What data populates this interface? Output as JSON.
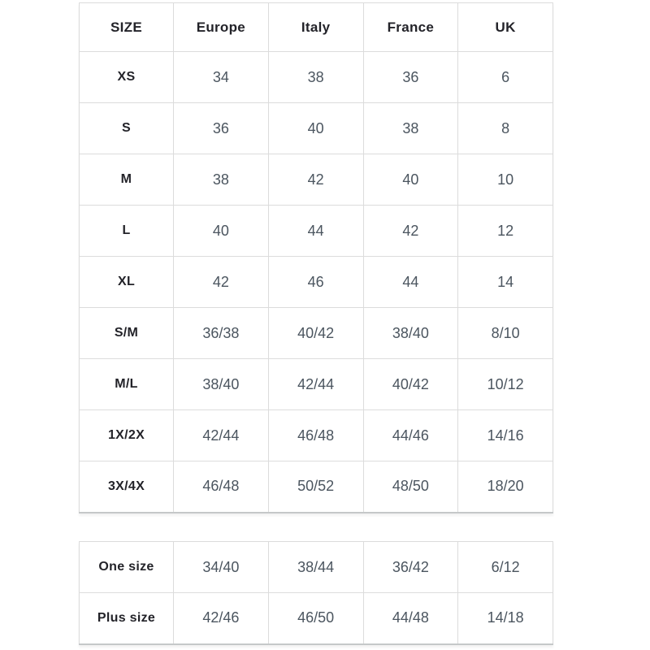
{
  "colors": {
    "background": "#ffffff",
    "border": "#dcdcdc",
    "table_bottom_border": "#c5c8c9",
    "header_text": "#232329",
    "value_text": "#4b555f"
  },
  "chart_data": {
    "type": "table",
    "main_table": {
      "columns": [
        "SIZE",
        "Europe",
        "Italy",
        "France",
        "UK"
      ],
      "rows": [
        {
          "label": "XS",
          "values": [
            "34",
            "38",
            "36",
            "6"
          ]
        },
        {
          "label": "S",
          "values": [
            "36",
            "40",
            "38",
            "8"
          ]
        },
        {
          "label": "M",
          "values": [
            "38",
            "42",
            "40",
            "10"
          ]
        },
        {
          "label": "L",
          "values": [
            "40",
            "44",
            "42",
            "12"
          ]
        },
        {
          "label": "XL",
          "values": [
            "42",
            "46",
            "44",
            "14"
          ]
        },
        {
          "label": "S/M",
          "values": [
            "36/38",
            "40/42",
            "38/40",
            "8/10"
          ]
        },
        {
          "label": "M/L",
          "values": [
            "38/40",
            "42/44",
            "40/42",
            "10/12"
          ]
        },
        {
          "label": "1X/2X",
          "values": [
            "42/44",
            "46/48",
            "44/46",
            "14/16"
          ]
        },
        {
          "label": "3X/4X",
          "values": [
            "46/48",
            "50/52",
            "48/50",
            "18/20"
          ]
        }
      ]
    },
    "secondary_table": {
      "rows": [
        {
          "label": "One size",
          "values": [
            "34/40",
            "38/44",
            "36/42",
            "6/12"
          ]
        },
        {
          "label": "Plus size",
          "values": [
            "42/46",
            "46/50",
            "44/48",
            "14/18"
          ]
        }
      ]
    }
  }
}
